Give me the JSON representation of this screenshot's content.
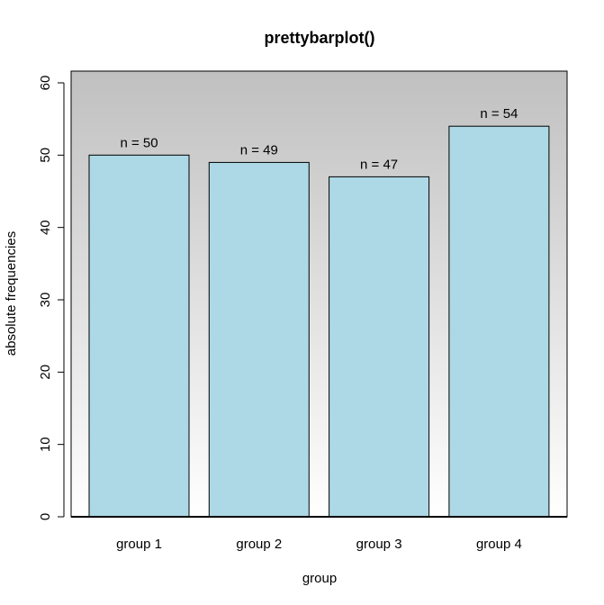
{
  "chart_data": {
    "type": "bar",
    "title": "prettybarplot()",
    "xlabel": "group",
    "ylabel": "absolute frequencies",
    "categories": [
      "group 1",
      "group 2",
      "group 3",
      "group 4"
    ],
    "values": [
      50,
      49,
      47,
      54
    ],
    "data_labels": [
      "n = 50",
      "n = 49",
      "n = 47",
      "n = 54"
    ],
    "ylim": [
      0,
      60
    ],
    "yticks": [
      "0",
      "10",
      "20",
      "30",
      "40",
      "50",
      "60"
    ],
    "bar_color": "#add8e6",
    "background_gradient": [
      "#c0c0c0",
      "#ffffff"
    ],
    "grid": false
  }
}
